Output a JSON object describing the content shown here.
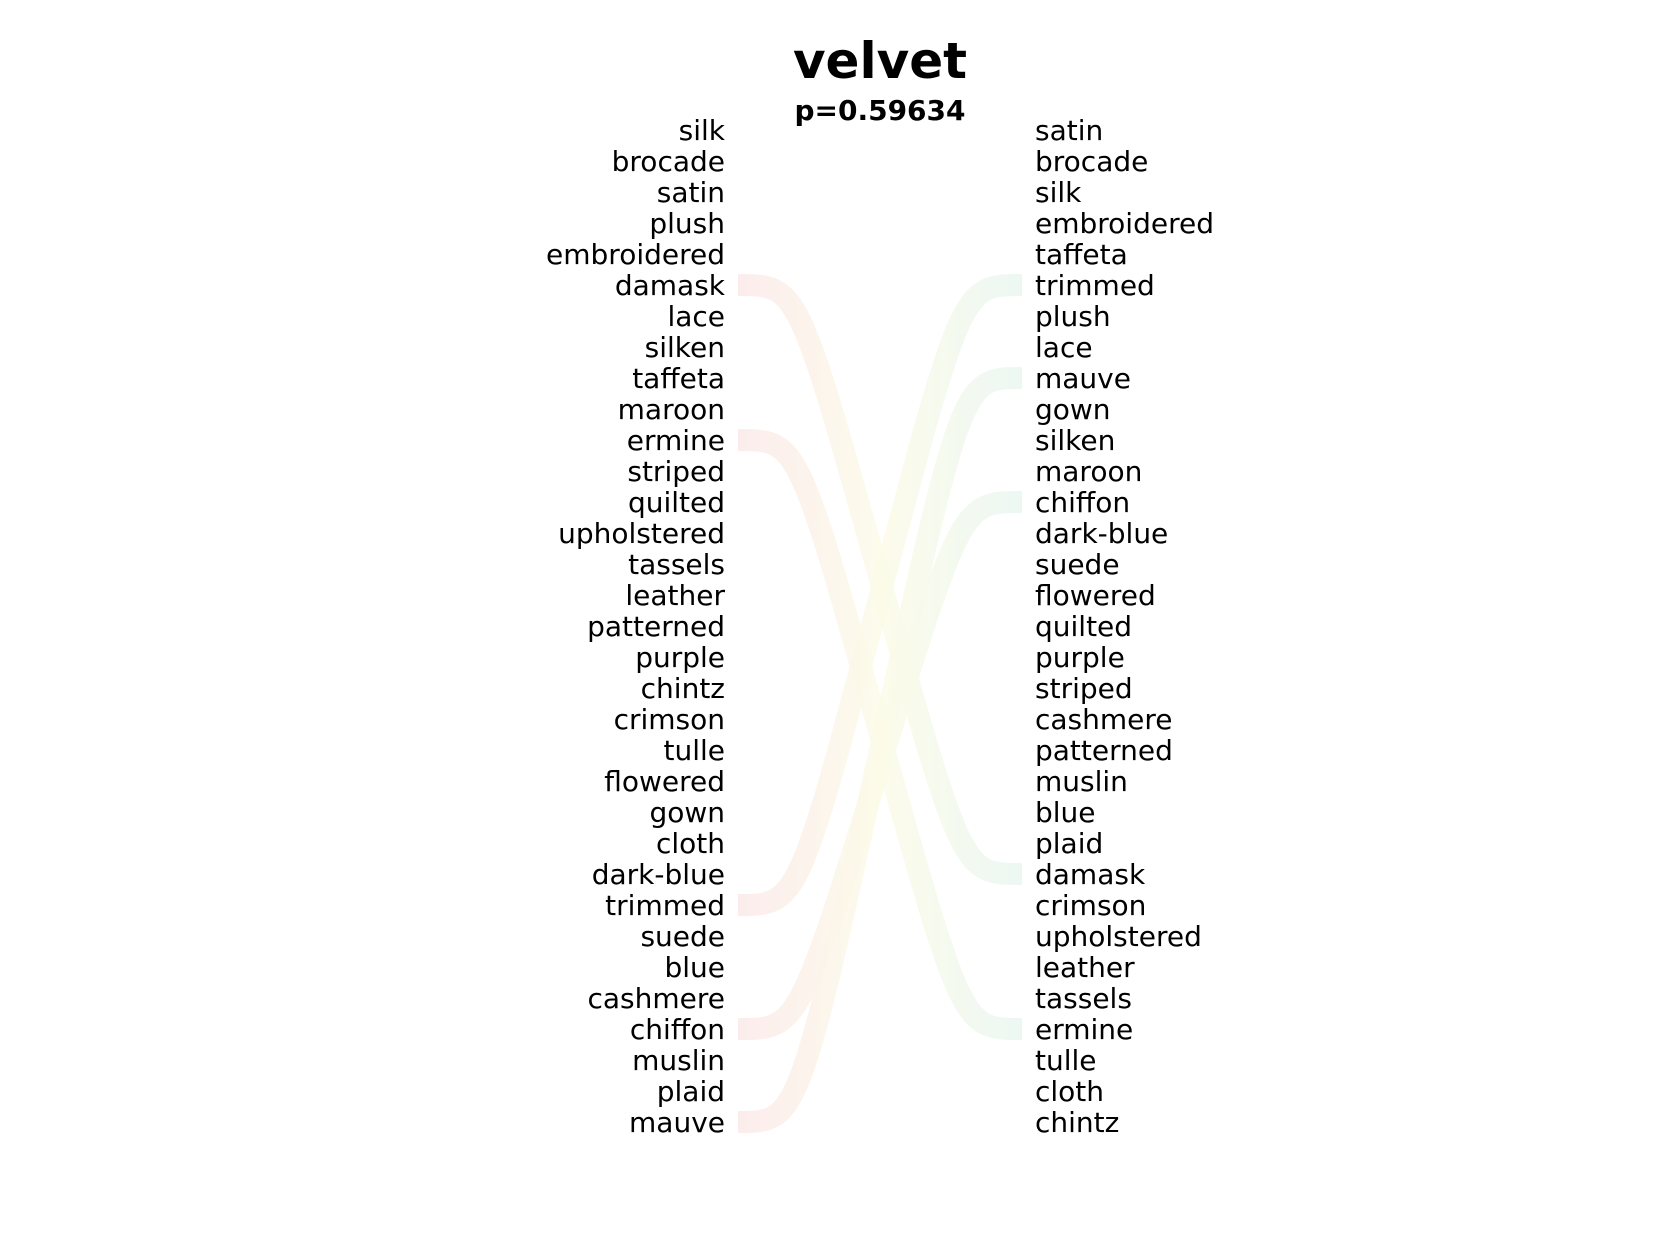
{
  "title": "velvet",
  "subtitle": "p=0.59634",
  "left_column": [
    "silk",
    "brocade",
    "satin",
    "plush",
    "embroidered",
    "damask",
    "lace",
    "silken",
    "taffeta",
    "maroon",
    "ermine",
    "striped",
    "quilted",
    "upholstered",
    "tassels",
    "leather",
    "patterned",
    "purple",
    "chintz",
    "crimson",
    "tulle",
    "flowered",
    "gown",
    "cloth",
    "dark-blue",
    "trimmed",
    "suede",
    "blue",
    "cashmere",
    "chiffon",
    "muslin",
    "plaid",
    "mauve"
  ],
  "right_column": [
    "satin",
    "brocade",
    "silk",
    "embroidered",
    "taffeta",
    "trimmed",
    "plush",
    "lace",
    "mauve",
    "gown",
    "silken",
    "maroon",
    "chiffon",
    "dark-blue",
    "suede",
    "flowered",
    "quilted",
    "purple",
    "striped",
    "cashmere",
    "patterned",
    "muslin",
    "blue",
    "plaid",
    "damask",
    "crimson",
    "upholstered",
    "leather",
    "tassels",
    "ermine",
    "tulle",
    "cloth",
    "chintz"
  ],
  "connections": [
    {
      "from": "damask",
      "to": "damask"
    },
    {
      "from": "ermine",
      "to": "ermine"
    },
    {
      "from": "trimmed",
      "to": "trimmed"
    },
    {
      "from": "chiffon",
      "to": "chiffon"
    },
    {
      "from": "mauve",
      "to": "mauve"
    }
  ],
  "colors": {
    "left_end": "#fbe9ea",
    "mid": "#fcfbe8",
    "right_end": "#eaf6f1",
    "text": "#000000"
  }
}
